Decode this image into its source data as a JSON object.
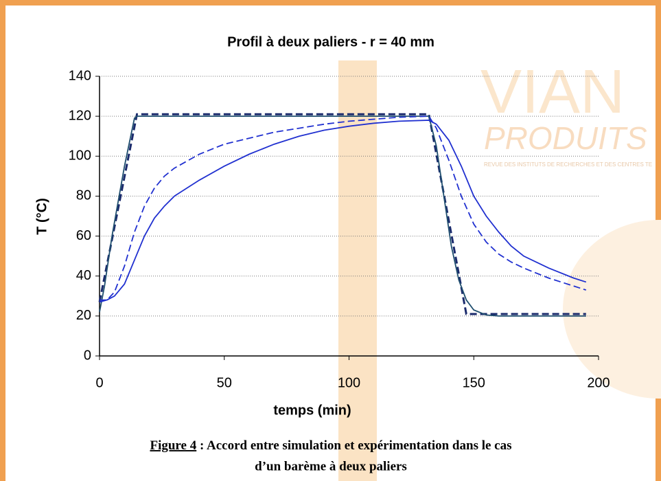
{
  "chart_data": {
    "type": "line",
    "title": "Profil à deux paliers - r = 40 mm",
    "x_label": "temps (min)",
    "y_label": "T (°C)",
    "xlim": [
      0,
      200
    ],
    "xticks": [
      0,
      50,
      100,
      150,
      200
    ],
    "ylim": [
      0,
      140
    ],
    "yticks": [
      0,
      20,
      40,
      60,
      80,
      100,
      120,
      140
    ],
    "grid": true,
    "series": [
      {
        "color": "#1a2a6c",
        "dashed": true,
        "x": [
          0,
          15,
          132,
          147,
          195
        ],
        "values": [
          27,
          121,
          121,
          21,
          21
        ]
      },
      {
        "color": "#1f4e6e",
        "dashed": false,
        "x": [
          0,
          2,
          5,
          10,
          14,
          15,
          132,
          135,
          138,
          141,
          144,
          147,
          150,
          155,
          160,
          195
        ],
        "values": [
          22,
          35,
          60,
          95,
          119,
          120,
          120,
          105,
          80,
          55,
          38,
          28,
          23,
          20.5,
          20,
          20
        ]
      },
      {
        "color": "#2030d0",
        "dashed": false,
        "x": [
          0,
          3,
          6,
          10,
          14,
          18,
          22,
          26,
          30,
          40,
          50,
          60,
          70,
          80,
          90,
          100,
          110,
          120,
          132,
          135,
          140,
          145,
          150,
          155,
          160,
          165,
          170,
          180,
          190,
          195
        ],
        "values": [
          28,
          28,
          30,
          36,
          48,
          60,
          69,
          75,
          80,
          88,
          95,
          101,
          106,
          110,
          113,
          115,
          116.5,
          117.5,
          118,
          116,
          108,
          95,
          80,
          70,
          62,
          55,
          50,
          44,
          39,
          37
        ]
      },
      {
        "color": "#2030d0",
        "dashed": true,
        "x": [
          0,
          3,
          6,
          10,
          14,
          18,
          22,
          26,
          30,
          40,
          50,
          60,
          70,
          80,
          90,
          100,
          110,
          120,
          132,
          135,
          140,
          145,
          150,
          155,
          160,
          165,
          170,
          180,
          190,
          195
        ],
        "values": [
          27,
          28,
          32,
          45,
          62,
          75,
          84,
          90,
          94,
          101,
          106,
          109,
          112,
          114,
          116,
          117.5,
          118.5,
          119.5,
          120,
          114,
          98,
          80,
          66,
          57,
          51,
          47,
          44,
          39,
          35,
          33
        ]
      }
    ],
    "watermark": {
      "logo": "VIAN",
      "subtitle": "PRODUITS",
      "tagline": "REVUE DES INSTITUTS DE RECHERCHES ET DES CENTRES TE"
    },
    "caption": {
      "label": "Figure 4",
      "line1": " : Accord entre simulation et expérimentation dans le cas",
      "line2": "d’un barème à deux paliers"
    }
  }
}
